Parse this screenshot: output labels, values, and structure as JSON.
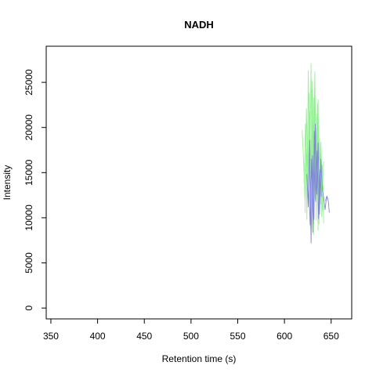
{
  "chart_data": {
    "type": "line",
    "title": "NADH",
    "xlabel": "Retention time (s)",
    "ylabel": "Intensity",
    "xlim": [
      345,
      672
    ],
    "ylim": [
      -1200,
      29000
    ],
    "xticks": [
      350,
      400,
      450,
      500,
      550,
      600,
      650
    ],
    "yticks": [
      0,
      5000,
      10000,
      15000,
      20000,
      25000
    ],
    "grid": false,
    "legend": "none",
    "series_style": {
      "green_color": "#90ee90",
      "blue_color": "#8080dd"
    },
    "series": [
      {
        "color": "#90ee90",
        "points": [
          [
            619,
            19700
          ],
          [
            620.5,
            16200
          ],
          [
            622,
            11800
          ],
          [
            623.5,
            17600
          ],
          [
            625,
            12400
          ],
          [
            626.5,
            23800
          ],
          [
            628,
            11200
          ],
          [
            629.5,
            20900
          ],
          [
            631,
            8100
          ],
          [
            632.5,
            24600
          ],
          [
            634,
            14200
          ],
          [
            635.5,
            19300
          ],
          [
            637,
            9300
          ],
          [
            638.5,
            17100
          ],
          [
            640,
            12600
          ],
          [
            641.5,
            10800
          ]
        ]
      },
      {
        "color": "#90ee90",
        "points": [
          [
            621,
            13900
          ],
          [
            622.5,
            20400
          ],
          [
            624,
            9800
          ],
          [
            625.5,
            26300
          ],
          [
            627,
            13400
          ],
          [
            628.5,
            27100
          ],
          [
            630,
            10600
          ],
          [
            631.5,
            23300
          ],
          [
            633,
            12000
          ],
          [
            634.5,
            21500
          ],
          [
            636,
            8600
          ],
          [
            637.5,
            18800
          ],
          [
            639,
            11500
          ],
          [
            640.5,
            15900
          ],
          [
            642,
            9400
          ]
        ]
      },
      {
        "color": "#90ee90",
        "points": [
          [
            622,
            10600
          ],
          [
            623.5,
            22100
          ],
          [
            625,
            15700
          ],
          [
            626.5,
            19500
          ],
          [
            628,
            8800
          ],
          [
            629.5,
            25200
          ],
          [
            631,
            14600
          ],
          [
            632.5,
            26200
          ],
          [
            634,
            9700
          ],
          [
            635.5,
            22600
          ],
          [
            637,
            13100
          ],
          [
            638.5,
            16800
          ],
          [
            640,
            10100
          ],
          [
            641.5,
            13500
          ]
        ]
      },
      {
        "color": "#90ee90",
        "points": [
          [
            624,
            17100
          ],
          [
            625.5,
            12300
          ],
          [
            627,
            21800
          ],
          [
            628.5,
            14900
          ],
          [
            630,
            24200
          ],
          [
            631.5,
            9400
          ],
          [
            633,
            20100
          ],
          [
            634.5,
            15500
          ],
          [
            636,
            23100
          ],
          [
            637.5,
            11300
          ],
          [
            639,
            18400
          ],
          [
            640.5,
            12900
          ],
          [
            642,
            16200
          ]
        ]
      },
      {
        "color": "#8080dd",
        "points": [
          [
            624,
            14800
          ],
          [
            625.5,
            11200
          ],
          [
            627,
            18600
          ],
          [
            628.5,
            7200
          ],
          [
            630,
            16900
          ],
          [
            631.5,
            9800
          ],
          [
            633,
            20400
          ],
          [
            634.5,
            12600
          ],
          [
            636,
            18300
          ],
          [
            637.5,
            10400
          ],
          [
            639,
            16500
          ],
          [
            640.5,
            13200
          ],
          [
            642,
            12200
          ],
          [
            643.5,
            10900
          ],
          [
            645,
            12300
          ],
          [
            646.5,
            12100
          ]
        ]
      },
      {
        "color": "#8080dd",
        "points": [
          [
            626,
            13400
          ],
          [
            627.5,
            9200
          ],
          [
            629,
            16500
          ],
          [
            630.5,
            8400
          ],
          [
            632,
            19600
          ],
          [
            633.5,
            11800
          ],
          [
            635,
            17400
          ],
          [
            636.5,
            9900
          ],
          [
            638,
            15300
          ],
          [
            639.5,
            12400
          ]
        ]
      },
      {
        "color": "#8080dd",
        "points": [
          [
            644,
            11900
          ],
          [
            645.5,
            12400
          ],
          [
            647,
            11800
          ],
          [
            648,
            10600
          ]
        ]
      }
    ]
  }
}
